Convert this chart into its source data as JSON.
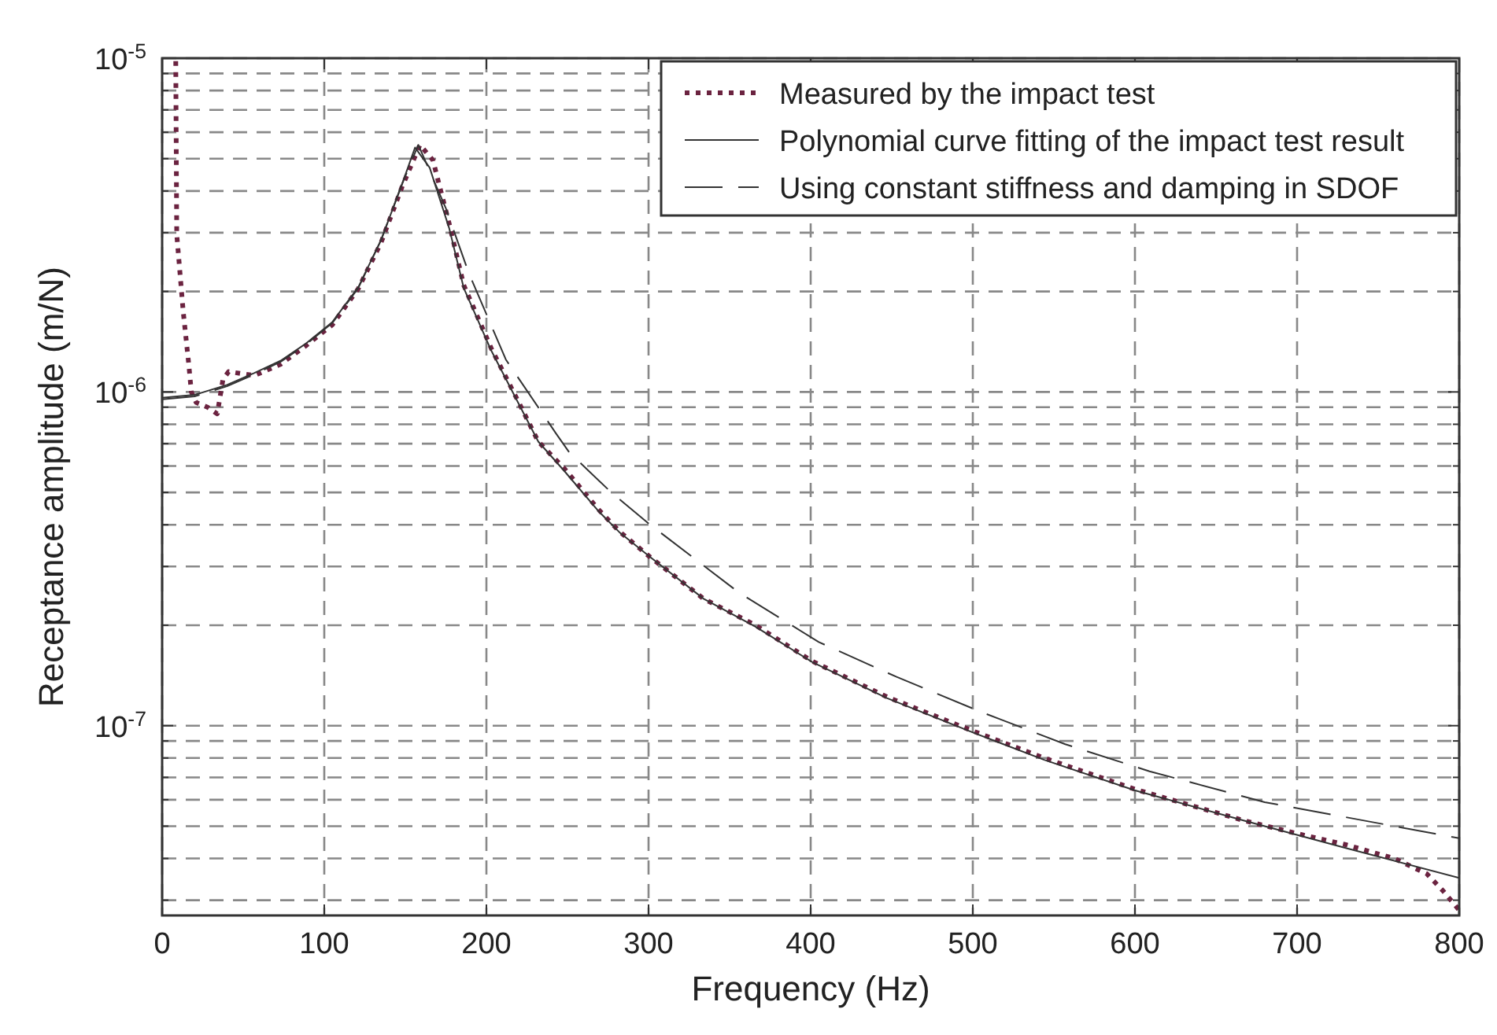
{
  "chart_data": {
    "type": "line",
    "xlabel": "Frequency   (Hz)",
    "ylabel": "Receptance amplitude  (m/N)",
    "log": "y",
    "grid": true,
    "legend": "top right",
    "marker": "none",
    "xlim": [
      0,
      800
    ],
    "xticks": [
      0,
      100,
      200,
      300,
      400,
      500,
      600,
      700,
      800
    ],
    "ylim": [
      2.7e-08,
      1e-05
    ],
    "yticks": [
      {
        "value": 3e-08,
        "label": null
      },
      {
        "value": 4e-08,
        "label": null
      },
      {
        "value": 5e-08,
        "label": null
      },
      {
        "value": 6e-08,
        "label": null
      },
      {
        "value": 7e-08,
        "label": null
      },
      {
        "value": 8e-08,
        "label": null
      },
      {
        "value": 9e-08,
        "label": null
      },
      {
        "value": 1e-07,
        "label": "10$^{-7}$"
      },
      {
        "value": 2e-07,
        "label": null
      },
      {
        "value": 3e-07,
        "label": null
      },
      {
        "value": 4e-07,
        "label": null
      },
      {
        "value": 5e-07,
        "label": null
      },
      {
        "value": 6e-07,
        "label": null
      },
      {
        "value": 7e-07,
        "label": null
      },
      {
        "value": 8e-07,
        "label": null
      },
      {
        "value": 9e-07,
        "label": null
      },
      {
        "value": 1e-06,
        "label": "10$^{-6}$"
      },
      {
        "value": 2e-06,
        "label": null
      },
      {
        "value": 3e-06,
        "label": null
      },
      {
        "value": 4e-06,
        "label": null
      },
      {
        "value": 5e-06,
        "label": null
      },
      {
        "value": 6e-06,
        "label": null
      },
      {
        "value": 7e-06,
        "label": null
      },
      {
        "value": 8e-06,
        "label": null
      },
      {
        "value": 9e-06,
        "label": null
      },
      {
        "value": 1e-05,
        "label": "10$^{-5}$"
      }
    ],
    "series": [
      {
        "name": "Measured by the impact test",
        "color": "#6b2340",
        "line_style": "dotted",
        "x": [
          8.4,
          9,
          13,
          16.5,
          18,
          21,
          28,
          34,
          37.5,
          41,
          57,
          73,
          89,
          105,
          121,
          135,
          148,
          159,
          167,
          177,
          186,
          203,
          219,
          232,
          248,
          269,
          282,
          301,
          334,
          366,
          401,
          447,
          501,
          544,
          600,
          635,
          667,
          700,
          730,
          760,
          780,
          790,
          800
        ],
        "values": [
          9.8e-06,
          2.97e-06,
          1.74e-06,
          1.2e-06,
          1e-06,
          9.3e-07,
          9e-07,
          8.6e-07,
          1.09e-06,
          1.15e-06,
          1.12e-06,
          1.21e-06,
          1.38e-06,
          1.59e-06,
          2.04e-06,
          2.8e-06,
          4.12e-06,
          5.5e-06,
          4.95e-06,
          3.2e-06,
          2.09e-06,
          1.35e-06,
          9.5e-07,
          7.1e-07,
          5.9e-07,
          4.45e-07,
          3.82e-07,
          3.2e-07,
          2.4e-07,
          2e-07,
          1.56e-07,
          1.22e-07,
          9.6e-08,
          8e-08,
          6.45e-08,
          5.76e-08,
          5.2e-08,
          4.75e-08,
          4.4e-08,
          4e-08,
          3.6e-08,
          3.2e-08,
          2.8e-08
        ]
      },
      {
        "name": "Polynomial curve fitting of the impact test result",
        "color": "#333333",
        "line_style": "solid",
        "x": [
          0,
          20,
          40,
          57,
          73,
          89,
          105,
          121,
          135,
          148,
          156,
          165,
          177,
          186,
          203,
          219,
          232,
          248,
          269,
          282,
          301,
          334,
          366,
          401,
          447,
          501,
          544,
          600,
          667,
          730,
          800
        ],
        "values": [
          9.6e-07,
          9.8e-07,
          1.05e-06,
          1.14e-06,
          1.24e-06,
          1.4e-06,
          1.62e-06,
          2.06e-06,
          2.85e-06,
          4.2e-06,
          5.4e-06,
          4.7e-06,
          3.1e-06,
          2.05e-06,
          1.33e-06,
          9.4e-07,
          7.1e-07,
          5.8e-07,
          4.4e-07,
          3.8e-07,
          3.2e-07,
          2.4e-07,
          1.98e-07,
          1.55e-07,
          1.21e-07,
          9.5e-08,
          7.9e-08,
          6.4e-08,
          5.2e-08,
          4.3e-08,
          3.5e-08
        ]
      },
      {
        "name": "Using constant stiffness and damping in SDOF",
        "color": "#333333",
        "line_style": "dashed",
        "x": [
          0,
          20,
          40,
          57,
          73,
          89,
          105,
          121,
          135,
          148,
          158,
          175,
          189,
          212,
          243,
          251,
          277,
          301,
          356,
          405,
          453,
          505,
          557,
          609,
          680,
          800
        ],
        "values": [
          9.5e-07,
          9.7e-07,
          1.04e-06,
          1.13e-06,
          1.23e-06,
          1.39e-06,
          1.61e-06,
          2.05e-06,
          2.85e-06,
          4.2e-06,
          5.5e-06,
          3.55e-06,
          2.28e-06,
          1.25e-06,
          7.5e-07,
          6.6e-07,
          5e-07,
          4e-07,
          2.5e-07,
          1.78e-07,
          1.4e-07,
          1.1e-07,
          8.8e-08,
          7.3e-08,
          5.9e-08,
          4.6e-08
        ]
      }
    ]
  }
}
